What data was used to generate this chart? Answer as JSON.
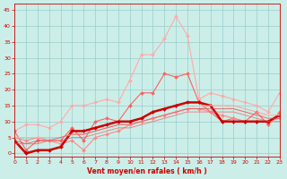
{
  "xlabel": "Vent moyen/en rafales ( km/h )",
  "xlim": [
    0,
    23
  ],
  "ylim": [
    -1,
    47
  ],
  "yticks": [
    0,
    5,
    10,
    15,
    20,
    25,
    30,
    35,
    40,
    45
  ],
  "xticks": [
    0,
    1,
    2,
    3,
    4,
    5,
    6,
    7,
    8,
    9,
    10,
    11,
    12,
    13,
    14,
    15,
    16,
    17,
    18,
    19,
    20,
    21,
    22,
    23
  ],
  "bg_color": "#cceee8",
  "grid_color": "#99cccc",
  "lines": [
    {
      "x": [
        0,
        1,
        2,
        3,
        4,
        5,
        6,
        7,
        8,
        9,
        10,
        11,
        12,
        13,
        14,
        15,
        16,
        17,
        18,
        19,
        20,
        21,
        22,
        23
      ],
      "y": [
        7,
        9,
        9,
        8,
        10,
        15,
        15,
        16,
        17,
        16,
        23,
        31,
        31,
        36,
        43,
        37,
        17,
        19,
        18,
        17,
        16,
        15,
        13,
        19
      ],
      "color": "#ffaaaa",
      "lw": 0.8,
      "marker": "D",
      "ms": 2.0,
      "alpha": 1.0
    },
    {
      "x": [
        0,
        1,
        2,
        3,
        4,
        5,
        6,
        7,
        8,
        9,
        10,
        11,
        12,
        13,
        14,
        15,
        16,
        17,
        18,
        19,
        20,
        21,
        22,
        23
      ],
      "y": [
        7,
        1,
        4,
        4,
        4,
        8,
        4,
        10,
        11,
        10,
        15,
        19,
        19,
        25,
        24,
        25,
        16,
        13,
        10,
        11,
        10,
        13,
        9,
        13
      ],
      "color": "#ff6060",
      "lw": 0.8,
      "marker": "D",
      "ms": 2.0,
      "alpha": 1.0
    },
    {
      "x": [
        0,
        1,
        2,
        3,
        4,
        5,
        6,
        7,
        8,
        9,
        10,
        11,
        12,
        13,
        14,
        15,
        16,
        17,
        18,
        19,
        20,
        21,
        22,
        23
      ],
      "y": [
        5,
        4,
        5,
        4,
        3,
        4,
        1,
        5,
        6,
        7,
        9,
        10,
        11,
        12,
        13,
        14,
        14,
        13,
        12,
        11,
        10,
        10,
        10,
        11
      ],
      "color": "#ff8888",
      "lw": 0.8,
      "marker": "D",
      "ms": 2.0,
      "alpha": 1.0
    },
    {
      "x": [
        0,
        1,
        2,
        3,
        4,
        5,
        6,
        7,
        8,
        9,
        10,
        11,
        12,
        13,
        14,
        15,
        16,
        17,
        18,
        19,
        20,
        21,
        22,
        23
      ],
      "y": [
        4,
        0,
        1,
        1,
        2,
        7,
        7,
        8,
        9,
        10,
        10,
        11,
        13,
        14,
        15,
        16,
        16,
        15,
        10,
        10,
        10,
        10,
        10,
        12
      ],
      "color": "#cc0000",
      "lw": 1.8,
      "marker": "D",
      "ms": 2.0,
      "alpha": 1.0
    },
    {
      "x": [
        0,
        1,
        2,
        3,
        4,
        5,
        6,
        7,
        8,
        9,
        10,
        11,
        12,
        13,
        14,
        15,
        16,
        17,
        18,
        19,
        20,
        21,
        22,
        23
      ],
      "y": [
        5,
        5,
        5,
        5,
        5,
        6,
        6,
        7,
        8,
        9,
        9,
        10,
        11,
        12,
        13,
        14,
        14,
        15,
        15,
        15,
        14,
        13,
        12,
        12
      ],
      "color": "#ff9999",
      "lw": 0.7,
      "marker": null,
      "ms": 0,
      "alpha": 0.85
    },
    {
      "x": [
        0,
        1,
        2,
        3,
        4,
        5,
        6,
        7,
        8,
        9,
        10,
        11,
        12,
        13,
        14,
        15,
        16,
        17,
        18,
        19,
        20,
        21,
        22,
        23
      ],
      "y": [
        5,
        5,
        5,
        5,
        5,
        6,
        6,
        7,
        8,
        9,
        9,
        10,
        11,
        12,
        13,
        14,
        15,
        15,
        15,
        14,
        13,
        12,
        12,
        12
      ],
      "color": "#ffbbbb",
      "lw": 0.7,
      "marker": null,
      "ms": 0,
      "alpha": 0.75
    },
    {
      "x": [
        0,
        1,
        2,
        3,
        4,
        5,
        6,
        7,
        8,
        9,
        10,
        11,
        12,
        13,
        14,
        15,
        16,
        17,
        18,
        19,
        20,
        21,
        22,
        23
      ],
      "y": [
        4,
        3,
        4,
        4,
        5,
        6,
        6,
        7,
        8,
        9,
        9,
        10,
        11,
        12,
        13,
        14,
        14,
        14,
        14,
        14,
        13,
        12,
        11,
        11
      ],
      "color": "#dd4444",
      "lw": 0.7,
      "marker": null,
      "ms": 0,
      "alpha": 0.7
    },
    {
      "x": [
        0,
        1,
        2,
        3,
        4,
        5,
        6,
        7,
        8,
        9,
        10,
        11,
        12,
        13,
        14,
        15,
        16,
        17,
        18,
        19,
        20,
        21,
        22,
        23
      ],
      "y": [
        3,
        3,
        3,
        4,
        4,
        5,
        5,
        6,
        7,
        8,
        8,
        9,
        10,
        11,
        12,
        13,
        13,
        13,
        13,
        13,
        12,
        11,
        10,
        10
      ],
      "color": "#ee5555",
      "lw": 0.7,
      "marker": null,
      "ms": 0,
      "alpha": 0.65
    }
  ]
}
